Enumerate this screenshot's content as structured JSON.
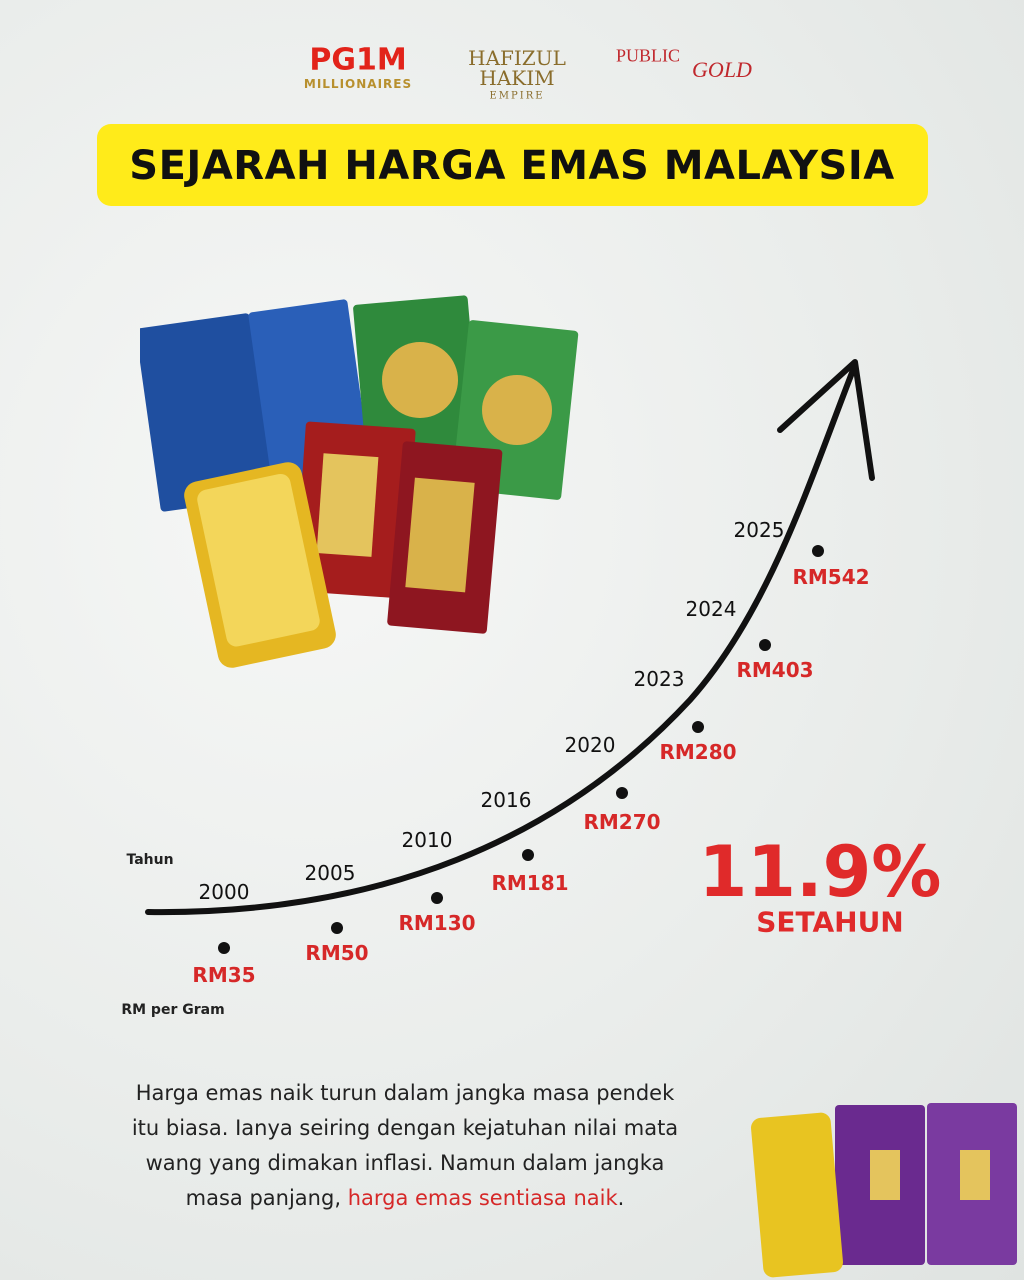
{
  "logos": {
    "pg1m": "PG1M",
    "pg1m_sub": "MILLIONAIRES",
    "hafizul": "HAFIZUL",
    "hakim": "HAKIM",
    "empire": "EMPIRE",
    "public": "PUBLIC",
    "gold": "GOLD"
  },
  "header": {
    "title": "SEJARAH HARGA EMAS MALAYSIA"
  },
  "timeline": {
    "x_label": "Tahun",
    "y_label": "RM per Gram",
    "points": [
      {
        "year": "2000",
        "price": "RM35"
      },
      {
        "year": "2005",
        "price": "RM50"
      },
      {
        "year": "2010",
        "price": "RM130"
      },
      {
        "year": "2016",
        "price": "RM181"
      },
      {
        "year": "2020",
        "price": "RM270"
      },
      {
        "year": "2023",
        "price": "RM280"
      },
      {
        "year": "2024",
        "price": "RM403"
      },
      {
        "year": "2025",
        "price": "RM542"
      }
    ]
  },
  "highlight": {
    "rate": "11.9%",
    "period": "SETAHUN"
  },
  "paragraph": {
    "lines": [
      "Harga emas naik turun dalam jangka masa pendek",
      "itu biasa. Ianya seiring dengan kejatuhan nilai mata",
      "wang yang dimakan inflasi. Namun dalam jangka",
      "masa panjang,"
    ],
    "emphasis": "harga emas sentiasa naik",
    "end": "."
  }
}
